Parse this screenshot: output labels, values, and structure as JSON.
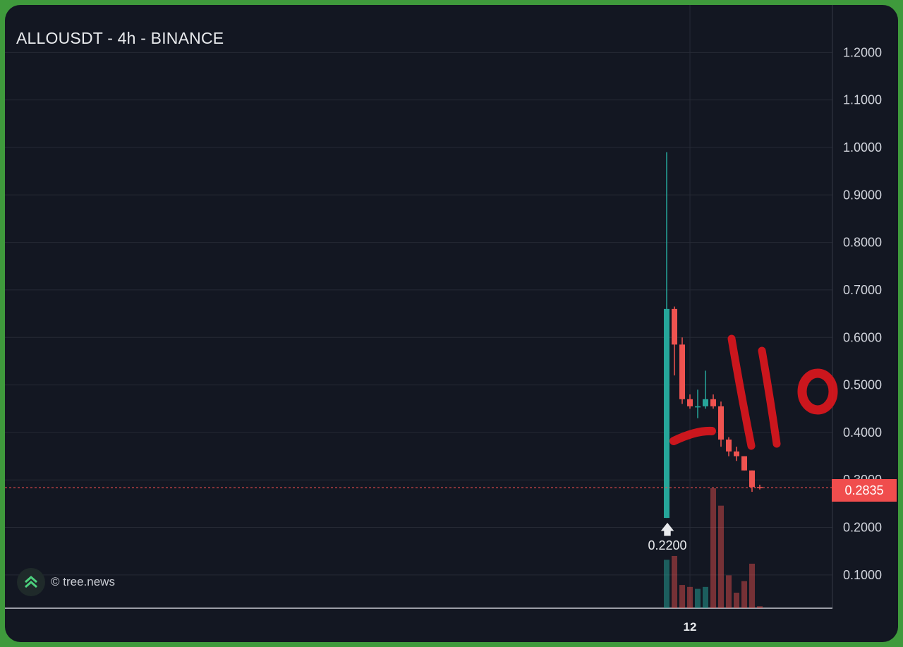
{
  "title": "ALLOUSDT - 4h - BINANCE",
  "watermark": "© tree.news",
  "low_marker": {
    "label": "0.2200",
    "arrow_icon": "up-arrow-icon"
  },
  "current_price": {
    "label": "0.2835",
    "value": 0.2835,
    "color": "#f04d4d"
  },
  "colors": {
    "up": "#26a69a",
    "down": "#ef5350",
    "background": "#131722",
    "annotation": "#e0161d"
  },
  "annotation_icon": "red-handwritten-scribble-icon",
  "chart_data": {
    "type": "candlestick",
    "title": "ALLOUSDT - 4h - BINANCE",
    "y_ticks": [
      "1.2000",
      "1.1000",
      "1.0000",
      "0.9000",
      "0.8000",
      "0.7000",
      "0.6000",
      "0.5000",
      "0.4000",
      "0.3000",
      "0.2000",
      "0.1000"
    ],
    "ylim": [
      0.03,
      1.3
    ],
    "x_ticks": [
      {
        "label": "12",
        "at_candle": 3
      }
    ],
    "grid": true,
    "candles": [
      {
        "o": 0.22,
        "h": 0.99,
        "l": 0.22,
        "c": 0.66,
        "v": 25
      },
      {
        "o": 0.66,
        "h": 0.665,
        "l": 0.52,
        "c": 0.585,
        "v": 27
      },
      {
        "o": 0.585,
        "h": 0.6,
        "l": 0.46,
        "c": 0.47,
        "v": 12
      },
      {
        "o": 0.47,
        "h": 0.48,
        "l": 0.45,
        "c": 0.455,
        "v": 11
      },
      {
        "o": 0.455,
        "h": 0.49,
        "l": 0.43,
        "c": 0.455,
        "v": 10
      },
      {
        "o": 0.455,
        "h": 0.53,
        "l": 0.45,
        "c": 0.47,
        "v": 11
      },
      {
        "o": 0.47,
        "h": 0.48,
        "l": 0.45,
        "c": 0.455,
        "v": 62
      },
      {
        "o": 0.455,
        "h": 0.465,
        "l": 0.37,
        "c": 0.385,
        "v": 53
      },
      {
        "o": 0.385,
        "h": 0.39,
        "l": 0.35,
        "c": 0.36,
        "v": 17
      },
      {
        "o": 0.36,
        "h": 0.37,
        "l": 0.34,
        "c": 0.35,
        "v": 8
      },
      {
        "o": 0.35,
        "h": 0.35,
        "l": 0.32,
        "c": 0.32,
        "v": 14
      },
      {
        "o": 0.32,
        "h": 0.32,
        "l": 0.275,
        "c": 0.285,
        "v": 23
      },
      {
        "o": 0.285,
        "h": 0.29,
        "l": 0.28,
        "c": 0.2835,
        "v": 1
      }
    ]
  }
}
